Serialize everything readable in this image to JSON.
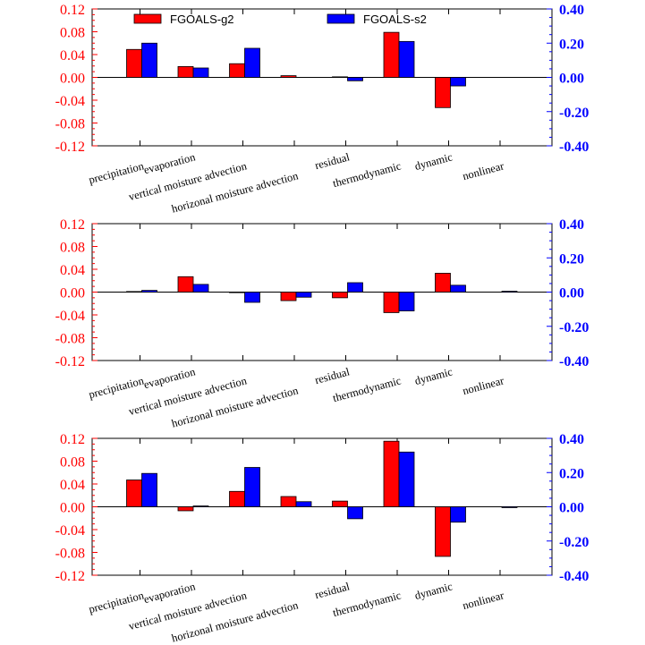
{
  "colors": {
    "left_axis": "#ff0000",
    "right_axis": "#0000ff",
    "series1": "#ff0000",
    "series2": "#0000ff",
    "frame": "#000000"
  },
  "chart_data": [
    {
      "type": "bar",
      "categories": [
        "precipitation",
        "evaporation",
        "vertical moisture advection",
        "horizonal moisture advection",
        "residual",
        "thermodynamic",
        "dynamic",
        "nonlinear"
      ],
      "ylim_left": [
        -0.12,
        0.12
      ],
      "yticks_left": [
        "0.12",
        "0.08",
        "0.04",
        "0.00",
        "-0.04",
        "-0.08",
        "-0.12"
      ],
      "ylim_right": [
        -0.4,
        0.4
      ],
      "yticks_right": [
        "0.40",
        "0.20",
        "0.00",
        "-0.20",
        "-0.40"
      ],
      "legend": "top",
      "series": [
        {
          "name": "FGOALS-g2",
          "axis": "left",
          "values": [
            0.049,
            0.019,
            0.024,
            0.003,
            0.001,
            0.079,
            -0.053,
            0.0
          ]
        },
        {
          "name": "FGOALS-s2",
          "axis": "right",
          "values": [
            0.2,
            0.055,
            0.17,
            0.0,
            -0.02,
            0.21,
            -0.05,
            0.0
          ]
        }
      ]
    },
    {
      "type": "bar",
      "categories": [
        "precipitation",
        "evaporation",
        "vertical moisture advection",
        "horizonal moisture advection",
        "residual",
        "thermodynamic",
        "dynamic",
        "nonlinear"
      ],
      "ylim_left": [
        -0.12,
        0.12
      ],
      "yticks_left": [
        "0.12",
        "0.08",
        "0.04",
        "0.00",
        "-0.04",
        "-0.08",
        "-0.12"
      ],
      "ylim_right": [
        -0.4,
        0.4
      ],
      "yticks_right": [
        "0.40",
        "0.20",
        "0.00",
        "-0.20",
        "-0.40"
      ],
      "series": [
        {
          "name": "FGOALS-g2",
          "axis": "left",
          "values": [
            0.001,
            0.027,
            -0.001,
            -0.015,
            -0.01,
            -0.036,
            0.033,
            0.0
          ]
        },
        {
          "name": "FGOALS-s2",
          "axis": "right",
          "values": [
            0.01,
            0.045,
            -0.06,
            -0.03,
            0.055,
            -0.11,
            0.04,
            0.005
          ]
        }
      ]
    },
    {
      "type": "bar",
      "categories": [
        "precipitation",
        "evaporation",
        "vertical moisture advection",
        "horizonal moisture advection",
        "residual",
        "thermodynamic",
        "dynamic",
        "nonlinear"
      ],
      "ylim_left": [
        -0.12,
        0.12
      ],
      "yticks_left": [
        "0.12",
        "0.08",
        "0.04",
        "0.00",
        "-0.04",
        "-0.08",
        "-0.12"
      ],
      "ylim_right": [
        -0.4,
        0.4
      ],
      "yticks_right": [
        "0.40",
        "0.20",
        "0.00",
        "-0.20",
        "-0.40"
      ],
      "series": [
        {
          "name": "FGOALS-g2",
          "axis": "left",
          "values": [
            0.047,
            -0.007,
            0.027,
            0.018,
            0.01,
            0.115,
            -0.087,
            0.0
          ]
        },
        {
          "name": "FGOALS-s2",
          "axis": "right",
          "values": [
            0.195,
            0.005,
            0.23,
            0.03,
            -0.07,
            0.32,
            -0.09,
            -0.005
          ]
        }
      ]
    }
  ]
}
